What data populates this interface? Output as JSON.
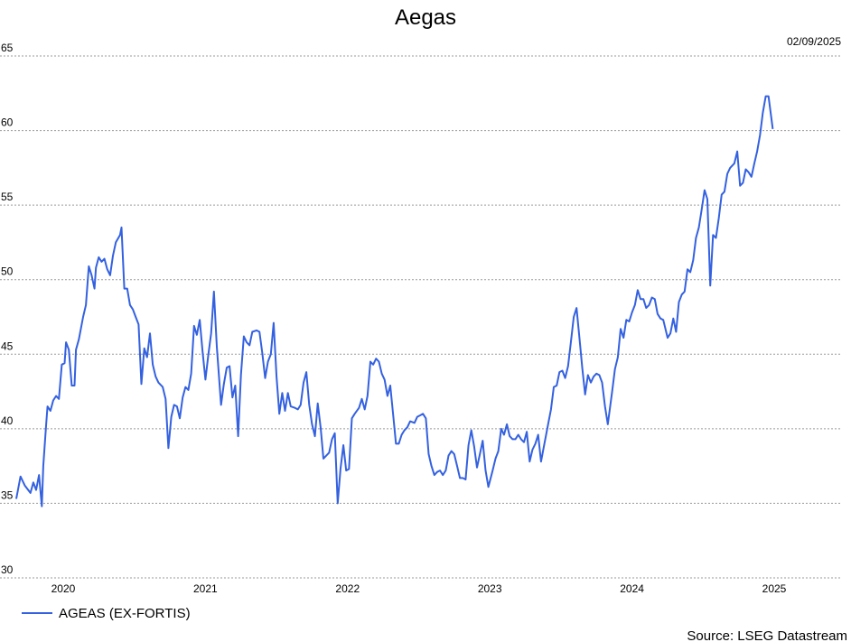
{
  "chart_data": {
    "type": "line",
    "title": "Aegas",
    "date_label": "02/09/2025",
    "source": "Source: LSEG Datastream",
    "ylim": [
      30,
      65
    ],
    "yticks": [
      30,
      35,
      40,
      45,
      50,
      55,
      60,
      65
    ],
    "grid": "horizontal dotted",
    "legend_placement": "bottom-left",
    "line_color": "#3461e0",
    "x_ticks": [
      {
        "label": "2020",
        "pos": 2020.2
      },
      {
        "label": "2021",
        "pos": 2021.2
      },
      {
        "label": "2022",
        "pos": 2022.2
      },
      {
        "label": "2023",
        "pos": 2023.2
      },
      {
        "label": "2024",
        "pos": 2024.2
      },
      {
        "label": "2025",
        "pos": 2025.2
      }
    ],
    "xlim": [
      2019.87,
      2025.67
    ],
    "series": [
      {
        "name": "AGEAS (EX-FORTIS)",
        "points": [
          [
            2019.87,
            35.3
          ],
          [
            2019.9,
            36.8
          ],
          [
            2019.93,
            36.2
          ],
          [
            2019.97,
            35.7
          ],
          [
            2019.99,
            36.4
          ],
          [
            2020.01,
            35.9
          ],
          [
            2020.03,
            36.9
          ],
          [
            2020.05,
            34.8
          ],
          [
            2020.06,
            37.5
          ],
          [
            2020.08,
            40.3
          ],
          [
            2020.09,
            41.5
          ],
          [
            2020.11,
            41.2
          ],
          [
            2020.13,
            41.9
          ],
          [
            2020.15,
            42.2
          ],
          [
            2020.17,
            42.0
          ],
          [
            2020.19,
            44.3
          ],
          [
            2020.21,
            44.4
          ],
          [
            2020.22,
            45.8
          ],
          [
            2020.24,
            45.3
          ],
          [
            2020.26,
            42.9
          ],
          [
            2020.28,
            42.9
          ],
          [
            2020.29,
            45.3
          ],
          [
            2020.31,
            46.0
          ],
          [
            2020.34,
            47.5
          ],
          [
            2020.36,
            48.3
          ],
          [
            2020.38,
            50.9
          ],
          [
            2020.4,
            50.3
          ],
          [
            2020.42,
            49.4
          ],
          [
            2020.43,
            50.8
          ],
          [
            2020.45,
            51.5
          ],
          [
            2020.47,
            51.2
          ],
          [
            2020.49,
            51.4
          ],
          [
            2020.51,
            50.7
          ],
          [
            2020.53,
            50.3
          ],
          [
            2020.55,
            51.6
          ],
          [
            2020.57,
            52.5
          ],
          [
            2020.6,
            53.0
          ],
          [
            2020.61,
            53.5
          ],
          [
            2020.63,
            49.4
          ],
          [
            2020.65,
            49.4
          ],
          [
            2020.67,
            48.3
          ],
          [
            2020.69,
            48.0
          ],
          [
            2020.71,
            47.5
          ],
          [
            2020.73,
            47.0
          ],
          [
            2020.75,
            43.0
          ],
          [
            2020.77,
            45.4
          ],
          [
            2020.79,
            44.8
          ],
          [
            2020.81,
            46.4
          ],
          [
            2020.83,
            44.3
          ],
          [
            2020.85,
            43.5
          ],
          [
            2020.87,
            43.1
          ],
          [
            2020.9,
            42.8
          ],
          [
            2020.92,
            42.0
          ],
          [
            2020.94,
            38.7
          ],
          [
            2020.96,
            40.8
          ],
          [
            2020.98,
            41.6
          ],
          [
            2021.0,
            41.5
          ],
          [
            2021.02,
            40.7
          ],
          [
            2021.04,
            42.1
          ],
          [
            2021.06,
            42.8
          ],
          [
            2021.08,
            42.6
          ],
          [
            2021.1,
            43.7
          ],
          [
            2021.12,
            46.9
          ],
          [
            2021.14,
            46.3
          ],
          [
            2021.16,
            47.3
          ],
          [
            2021.18,
            45.2
          ],
          [
            2021.2,
            43.3
          ],
          [
            2021.22,
            44.9
          ],
          [
            2021.24,
            46.4
          ],
          [
            2021.26,
            49.2
          ],
          [
            2021.28,
            45.5
          ],
          [
            2021.31,
            41.6
          ],
          [
            2021.33,
            43.0
          ],
          [
            2021.35,
            44.1
          ],
          [
            2021.37,
            44.2
          ],
          [
            2021.39,
            42.1
          ],
          [
            2021.41,
            42.9
          ],
          [
            2021.43,
            39.5
          ],
          [
            2021.45,
            43.6
          ],
          [
            2021.47,
            46.2
          ],
          [
            2021.49,
            45.8
          ],
          [
            2021.51,
            45.6
          ],
          [
            2021.53,
            46.5
          ],
          [
            2021.56,
            46.6
          ],
          [
            2021.58,
            46.5
          ],
          [
            2021.6,
            45.1
          ],
          [
            2021.62,
            43.4
          ],
          [
            2021.64,
            44.5
          ],
          [
            2021.66,
            45.0
          ],
          [
            2021.68,
            47.1
          ],
          [
            2021.7,
            43.5
          ],
          [
            2021.72,
            41.0
          ],
          [
            2021.74,
            42.4
          ],
          [
            2021.76,
            41.2
          ],
          [
            2021.78,
            42.4
          ],
          [
            2021.8,
            41.5
          ],
          [
            2021.83,
            41.4
          ],
          [
            2021.85,
            41.3
          ],
          [
            2021.87,
            41.6
          ],
          [
            2021.89,
            43.1
          ],
          [
            2021.91,
            43.8
          ],
          [
            2021.93,
            41.6
          ],
          [
            2021.95,
            40.3
          ],
          [
            2021.97,
            39.5
          ],
          [
            2021.99,
            41.7
          ],
          [
            2022.01,
            40.1
          ],
          [
            2022.03,
            38.0
          ],
          [
            2022.05,
            38.2
          ],
          [
            2022.07,
            38.4
          ],
          [
            2022.09,
            39.3
          ],
          [
            2022.11,
            39.7
          ],
          [
            2022.13,
            35.0
          ],
          [
            2022.15,
            37.3
          ],
          [
            2022.17,
            38.9
          ],
          [
            2022.19,
            37.2
          ],
          [
            2022.21,
            37.3
          ],
          [
            2022.23,
            40.7
          ],
          [
            2022.25,
            41.0
          ],
          [
            2022.28,
            41.4
          ],
          [
            2022.3,
            42.0
          ],
          [
            2022.32,
            41.3
          ],
          [
            2022.34,
            42.2
          ],
          [
            2022.36,
            44.5
          ],
          [
            2022.38,
            44.3
          ],
          [
            2022.4,
            44.7
          ],
          [
            2022.42,
            44.5
          ],
          [
            2022.44,
            43.7
          ],
          [
            2022.46,
            43.3
          ],
          [
            2022.48,
            42.2
          ],
          [
            2022.5,
            42.9
          ],
          [
            2022.52,
            41.0
          ],
          [
            2022.54,
            39.0
          ],
          [
            2022.56,
            39.0
          ],
          [
            2022.58,
            39.6
          ],
          [
            2022.6,
            39.9
          ],
          [
            2022.62,
            40.1
          ],
          [
            2022.64,
            40.5
          ],
          [
            2022.67,
            40.4
          ],
          [
            2022.69,
            40.8
          ],
          [
            2022.71,
            40.9
          ],
          [
            2022.73,
            41.0
          ],
          [
            2022.75,
            40.7
          ],
          [
            2022.77,
            38.3
          ],
          [
            2022.79,
            37.5
          ],
          [
            2022.81,
            36.9
          ],
          [
            2022.83,
            37.1
          ],
          [
            2022.85,
            37.2
          ],
          [
            2022.87,
            36.9
          ],
          [
            2022.89,
            37.2
          ],
          [
            2022.91,
            38.2
          ],
          [
            2022.93,
            38.5
          ],
          [
            2022.95,
            38.3
          ],
          [
            2022.97,
            37.5
          ],
          [
            2022.99,
            36.7
          ],
          [
            2023.01,
            36.7
          ],
          [
            2023.03,
            36.6
          ],
          [
            2023.05,
            38.9
          ],
          [
            2023.07,
            39.9
          ],
          [
            2023.09,
            38.8
          ],
          [
            2023.11,
            37.4
          ],
          [
            2023.13,
            38.3
          ],
          [
            2023.15,
            39.2
          ],
          [
            2023.17,
            37.2
          ],
          [
            2023.19,
            36.1
          ],
          [
            2023.22,
            37.2
          ],
          [
            2023.24,
            38.0
          ],
          [
            2023.26,
            38.5
          ],
          [
            2023.28,
            40.0
          ],
          [
            2023.3,
            39.6
          ],
          [
            2023.32,
            40.3
          ],
          [
            2023.34,
            39.5
          ],
          [
            2023.36,
            39.3
          ],
          [
            2023.38,
            39.3
          ],
          [
            2023.4,
            39.6
          ],
          [
            2023.42,
            39.3
          ],
          [
            2023.44,
            39.1
          ],
          [
            2023.46,
            39.8
          ],
          [
            2023.48,
            37.8
          ],
          [
            2023.5,
            38.6
          ],
          [
            2023.52,
            39.0
          ],
          [
            2023.54,
            39.6
          ],
          [
            2023.56,
            37.8
          ],
          [
            2023.58,
            38.8
          ],
          [
            2023.61,
            40.3
          ],
          [
            2023.63,
            41.3
          ],
          [
            2023.65,
            42.8
          ],
          [
            2023.67,
            42.9
          ],
          [
            2023.69,
            43.8
          ],
          [
            2023.71,
            43.9
          ],
          [
            2023.73,
            43.4
          ],
          [
            2023.75,
            44.2
          ],
          [
            2023.77,
            45.8
          ],
          [
            2023.79,
            47.5
          ],
          [
            2023.81,
            48.1
          ],
          [
            2023.83,
            46.1
          ],
          [
            2023.85,
            44.1
          ],
          [
            2023.87,
            42.3
          ],
          [
            2023.89,
            43.6
          ],
          [
            2023.91,
            43.1
          ],
          [
            2023.93,
            43.5
          ],
          [
            2023.95,
            43.7
          ],
          [
            2023.97,
            43.6
          ],
          [
            2023.99,
            43.1
          ],
          [
            2024.01,
            41.5
          ],
          [
            2024.03,
            40.3
          ],
          [
            2024.06,
            42.5
          ],
          [
            2024.08,
            44.0
          ],
          [
            2024.1,
            44.8
          ],
          [
            2024.12,
            46.7
          ],
          [
            2024.14,
            46.1
          ],
          [
            2024.16,
            47.3
          ],
          [
            2024.18,
            47.2
          ],
          [
            2024.2,
            47.8
          ],
          [
            2024.22,
            48.3
          ],
          [
            2024.24,
            49.3
          ],
          [
            2024.26,
            48.7
          ],
          [
            2024.28,
            48.7
          ],
          [
            2024.3,
            48.1
          ],
          [
            2024.32,
            48.3
          ],
          [
            2024.34,
            48.8
          ],
          [
            2024.36,
            48.7
          ],
          [
            2024.38,
            47.7
          ],
          [
            2024.4,
            47.4
          ],
          [
            2024.42,
            47.3
          ],
          [
            2024.45,
            46.1
          ],
          [
            2024.47,
            46.4
          ],
          [
            2024.49,
            47.4
          ],
          [
            2024.51,
            46.5
          ],
          [
            2024.53,
            48.5
          ],
          [
            2024.55,
            49.0
          ],
          [
            2024.57,
            49.2
          ],
          [
            2024.59,
            50.7
          ],
          [
            2024.61,
            50.5
          ],
          [
            2024.63,
            51.3
          ],
          [
            2024.65,
            52.8
          ],
          [
            2024.67,
            53.5
          ],
          [
            2024.69,
            54.7
          ],
          [
            2024.71,
            56.0
          ],
          [
            2024.73,
            55.4
          ],
          [
            2024.75,
            49.6
          ],
          [
            2024.77,
            53.0
          ],
          [
            2024.79,
            52.8
          ],
          [
            2024.81,
            54.1
          ],
          [
            2024.83,
            55.7
          ],
          [
            2024.85,
            55.9
          ],
          [
            2024.87,
            57.1
          ],
          [
            2024.89,
            57.5
          ],
          [
            2024.92,
            57.8
          ],
          [
            2024.94,
            58.6
          ],
          [
            2024.96,
            56.3
          ],
          [
            2024.98,
            56.5
          ],
          [
            2025.0,
            57.4
          ],
          [
            2025.02,
            57.2
          ],
          [
            2025.04,
            56.9
          ],
          [
            2025.06,
            57.8
          ],
          [
            2025.08,
            58.6
          ],
          [
            2025.1,
            59.7
          ],
          [
            2025.12,
            61.2
          ],
          [
            2025.14,
            62.3
          ],
          [
            2025.16,
            62.3
          ],
          [
            2025.19,
            60.1
          ]
        ]
      }
    ]
  }
}
